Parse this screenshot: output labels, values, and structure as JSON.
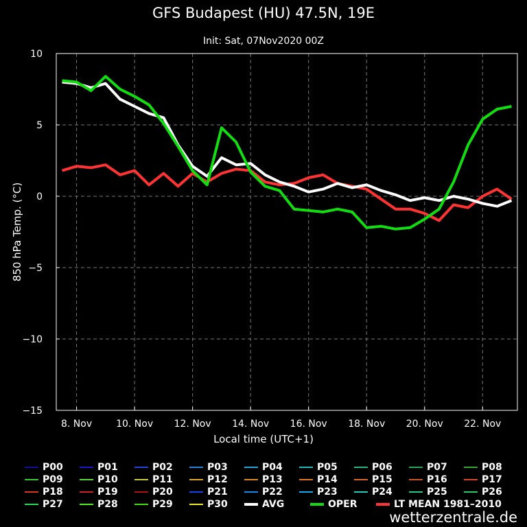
{
  "chart_data": {
    "type": "line",
    "title": "GFS Budapest (HU) 47.5N, 19E",
    "subtitle": "Init: Sat, 07Nov2020 00Z",
    "xlabel": "Local time (UTC+1)",
    "ylabel": "850 hPa Temp. (°C)",
    "xlim": [
      7.3,
      23.2
    ],
    "ylim": [
      -15,
      10
    ],
    "x_ticks": [
      8,
      10,
      12,
      14,
      16,
      18,
      20,
      22
    ],
    "x_tick_labels": [
      "8. Nov",
      "10. Nov",
      "12. Nov",
      "14. Nov",
      "16. Nov",
      "18. Nov",
      "20. Nov",
      "22. Nov"
    ],
    "y_ticks": [
      -15,
      -10,
      -5,
      0,
      5,
      10
    ],
    "y_tick_labels": [
      "−15",
      "−10",
      "−5",
      "0",
      "5",
      "10"
    ],
    "x": [
      7.5,
      8.0,
      8.5,
      9.0,
      9.5,
      10.0,
      10.5,
      11.0,
      11.5,
      12.0,
      12.5,
      13.0,
      13.5,
      14.0,
      14.5,
      15.0,
      15.5,
      16.0,
      16.5,
      17.0,
      17.5,
      18.0,
      18.5,
      19.0,
      19.5,
      20.0,
      20.5,
      21.0,
      21.5,
      22.0,
      22.5,
      23.0
    ],
    "series": [
      {
        "name": "LT MEAN 1981–2010",
        "color": "#ff3333",
        "width": 4,
        "values": [
          1.8,
          2.1,
          2.0,
          2.2,
          1.5,
          1.8,
          0.8,
          1.6,
          0.7,
          1.6,
          1.0,
          1.6,
          1.9,
          1.8,
          1.0,
          0.8,
          0.9,
          1.3,
          1.5,
          0.9,
          0.7,
          0.5,
          -0.2,
          -0.9,
          -0.9,
          -1.2,
          -1.7,
          -0.6,
          -0.8,
          0.0,
          0.5,
          -0.2
        ]
      },
      {
        "name": "AVG",
        "color": "#ffffff",
        "width": 4,
        "values": [
          8.0,
          7.9,
          7.6,
          7.9,
          6.8,
          6.3,
          5.8,
          5.5,
          3.6,
          2.1,
          1.4,
          2.7,
          2.2,
          2.3,
          1.5,
          1.0,
          0.7,
          0.3,
          0.5,
          0.9,
          0.6,
          0.8,
          0.4,
          0.1,
          -0.3,
          -0.1,
          -0.3,
          0.0,
          -0.2,
          -0.5,
          -0.7,
          -0.3
        ]
      },
      {
        "name": "OPER",
        "color": "#11dd11",
        "width": 4,
        "values": [
          8.1,
          8.0,
          7.4,
          8.4,
          7.5,
          7.0,
          6.4,
          5.1,
          3.5,
          1.8,
          0.8,
          4.8,
          3.8,
          1.7,
          0.7,
          0.4,
          -0.9,
          -1.0,
          -1.1,
          -0.9,
          -1.1,
          -2.2,
          -2.1,
          -2.3,
          -2.2,
          -1.6,
          -0.9,
          1.0,
          3.6,
          5.4,
          6.1,
          6.3
        ]
      }
    ]
  },
  "legend": {
    "rows": [
      [
        {
          "label": "P00",
          "color": "#1010a0"
        },
        {
          "label": "P01",
          "color": "#1818d0"
        },
        {
          "label": "P02",
          "color": "#2244dd"
        },
        {
          "label": "P03",
          "color": "#2288dd"
        },
        {
          "label": "P04",
          "color": "#22aadd"
        },
        {
          "label": "P05",
          "color": "#22bbbb"
        },
        {
          "label": "P06",
          "color": "#22bb88"
        },
        {
          "label": "P07",
          "color": "#22aa55"
        },
        {
          "label": "P08",
          "color": "#33aa33"
        }
      ],
      [
        {
          "label": "P09",
          "color": "#33cc33"
        },
        {
          "label": "P10",
          "color": "#55dd33"
        },
        {
          "label": "P11",
          "color": "#cccc33"
        },
        {
          "label": "P12",
          "color": "#ddaa22"
        },
        {
          "label": "P13",
          "color": "#dd8822"
        },
        {
          "label": "P14",
          "color": "#dd7722"
        },
        {
          "label": "P15",
          "color": "#dd6622"
        },
        {
          "label": "P16",
          "color": "#cc5522"
        },
        {
          "label": "P17",
          "color": "#dd4422"
        }
      ],
      [
        {
          "label": "P18",
          "color": "#dd3322"
        },
        {
          "label": "P19",
          "color": "#cc2222"
        },
        {
          "label": "P20",
          "color": "#aa1111"
        },
        {
          "label": "P21",
          "color": "#1144ee"
        },
        {
          "label": "P22",
          "color": "#1188ee"
        },
        {
          "label": "P23",
          "color": "#11aaee"
        },
        {
          "label": "P24",
          "color": "#22ccbb"
        },
        {
          "label": "P25",
          "color": "#22cc88"
        },
        {
          "label": "P26",
          "color": "#22cc66"
        }
      ],
      [
        {
          "label": "P27",
          "color": "#22dd55"
        },
        {
          "label": "P28",
          "color": "#55ee22"
        },
        {
          "label": "P29",
          "color": "#44dd11"
        },
        {
          "label": "P30",
          "color": "#eeee22"
        },
        {
          "label": "AVG",
          "color": "#ffffff",
          "thick": true
        },
        {
          "label": "OPER",
          "color": "#11dd11",
          "thick": true
        },
        {
          "label": "LT MEAN 1981–2010",
          "color": "#ff3333",
          "thick": true
        }
      ]
    ]
  },
  "watermark": "wetterzentrale.de"
}
